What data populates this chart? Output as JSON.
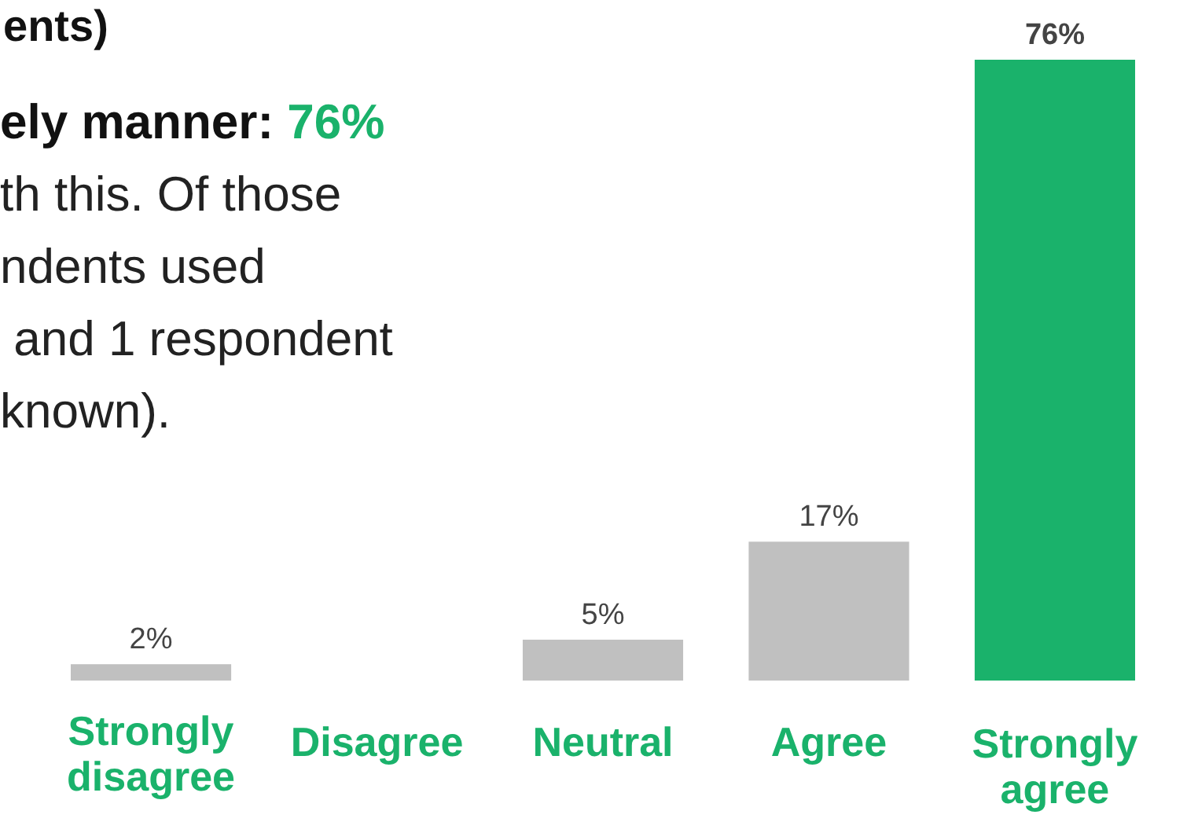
{
  "chart_data": {
    "type": "bar",
    "title": "ents)",
    "annotations": [
      "ely manner: 76%",
      "th this. Of those",
      "ndents used",
      " and 1 respondent",
      "known)."
    ],
    "categories": [
      "Strongly disagree",
      "Disagree",
      "Neutral",
      "Agree",
      "Strongly agree"
    ],
    "values": [
      2,
      0,
      5,
      17,
      76
    ],
    "colors": [
      "#c0c0c0",
      "#c0c0c0",
      "#c0c0c0",
      "#c0c0c0",
      "#1ab26b"
    ],
    "value_labels": [
      "2%",
      null,
      "5%",
      "17%",
      "76%"
    ]
  }
}
